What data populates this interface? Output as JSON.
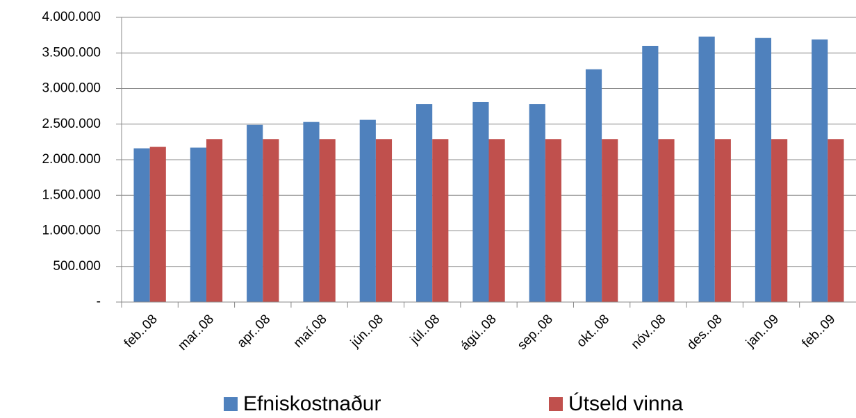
{
  "chart_data": {
    "type": "bar",
    "categories": [
      "feb..08",
      "mar..08",
      "apr..08",
      "maí.08",
      "jún..08",
      "júl..08",
      "ágú..08",
      "sep..08",
      "okt..08",
      "nóv..08",
      "des..08",
      "jan..09",
      "feb..09"
    ],
    "series": [
      {
        "name": "Efniskostnaður",
        "color": "#4f81bd",
        "values": [
          2160000,
          2170000,
          2490000,
          2530000,
          2560000,
          2780000,
          2810000,
          2780000,
          3270000,
          3600000,
          3730000,
          3710000,
          3690000
        ]
      },
      {
        "name": "Útseld vinna",
        "color": "#c0504d",
        "values": [
          2180000,
          2290000,
          2290000,
          2290000,
          2290000,
          2290000,
          2290000,
          2290000,
          2290000,
          2290000,
          2290000,
          2290000,
          2290000
        ]
      }
    ],
    "ylim": [
      0,
      4000000
    ],
    "yticks": [
      {
        "value": 0,
        "label": "-"
      },
      {
        "value": 500000,
        "label": "500.000"
      },
      {
        "value": 1000000,
        "label": "1.000.000"
      },
      {
        "value": 1500000,
        "label": "1.500.000"
      },
      {
        "value": 2000000,
        "label": "2.000.000"
      },
      {
        "value": 2500000,
        "label": "2.500.000"
      },
      {
        "value": 3000000,
        "label": "3.000.000"
      },
      {
        "value": 3500000,
        "label": "3.500.000"
      },
      {
        "value": 4000000,
        "label": "4.000.000"
      }
    ],
    "grid": true,
    "legend": "bottom"
  }
}
